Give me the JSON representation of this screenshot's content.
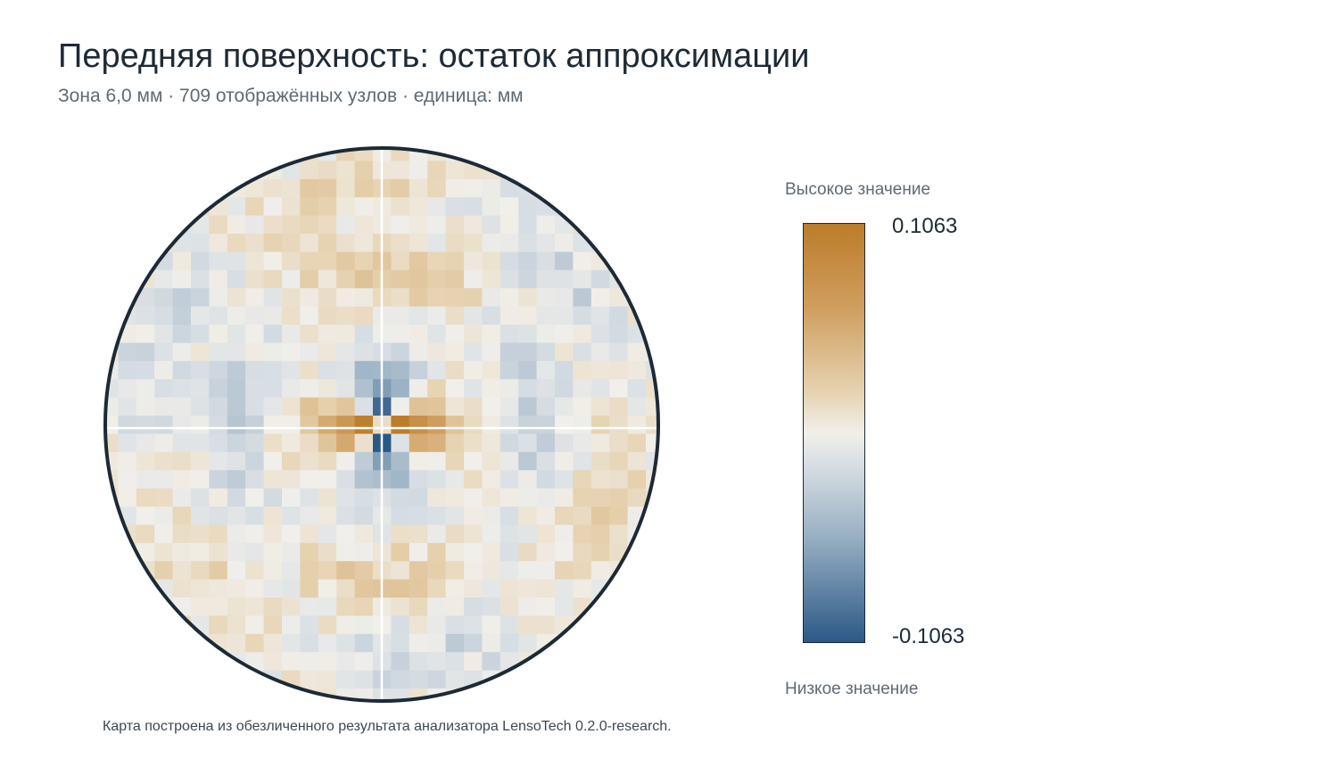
{
  "header": {
    "title": "Передняя поверхность: остаток аппроксимации",
    "subtitle": "Зона 6,0 мм · 709 отображённых узлов · единица: мм"
  },
  "legend": {
    "high_label": "Высокое значение",
    "low_label": "Низкое значение",
    "max_value": "0.1063",
    "min_value": "-0.1063"
  },
  "footnote": "Карта построена из обезличенного результата анализатора LensoTech 0.2.0-research.",
  "colors": {
    "high": "#bc7c2a",
    "mid": "#f1efea",
    "low": "#2b5986",
    "outline": "#1d2a36",
    "crosshair": "#ffffff"
  },
  "chart_data": {
    "type": "heatmap",
    "title": "Передняя поверхность: остаток аппроксимации",
    "zone_mm": 6.0,
    "node_count": 709,
    "unit": "мм",
    "shape": "circular pupil map",
    "grid": "30 x 30 cells clipped to circle",
    "color_scale": {
      "min": -0.1063,
      "max": 0.1063,
      "colors": [
        "#2b5986",
        "#98afc3",
        "#f1efea",
        "#e6d2b0",
        "#bc7c2a"
      ]
    },
    "crosshair": true,
    "legend_placement": "right",
    "pattern": "quadrafoil residual: positive (orange) lobes along horizontal axis near center, negative (blue) lobes along vertical axis near center, weak mixed residuals elsewhere"
  }
}
